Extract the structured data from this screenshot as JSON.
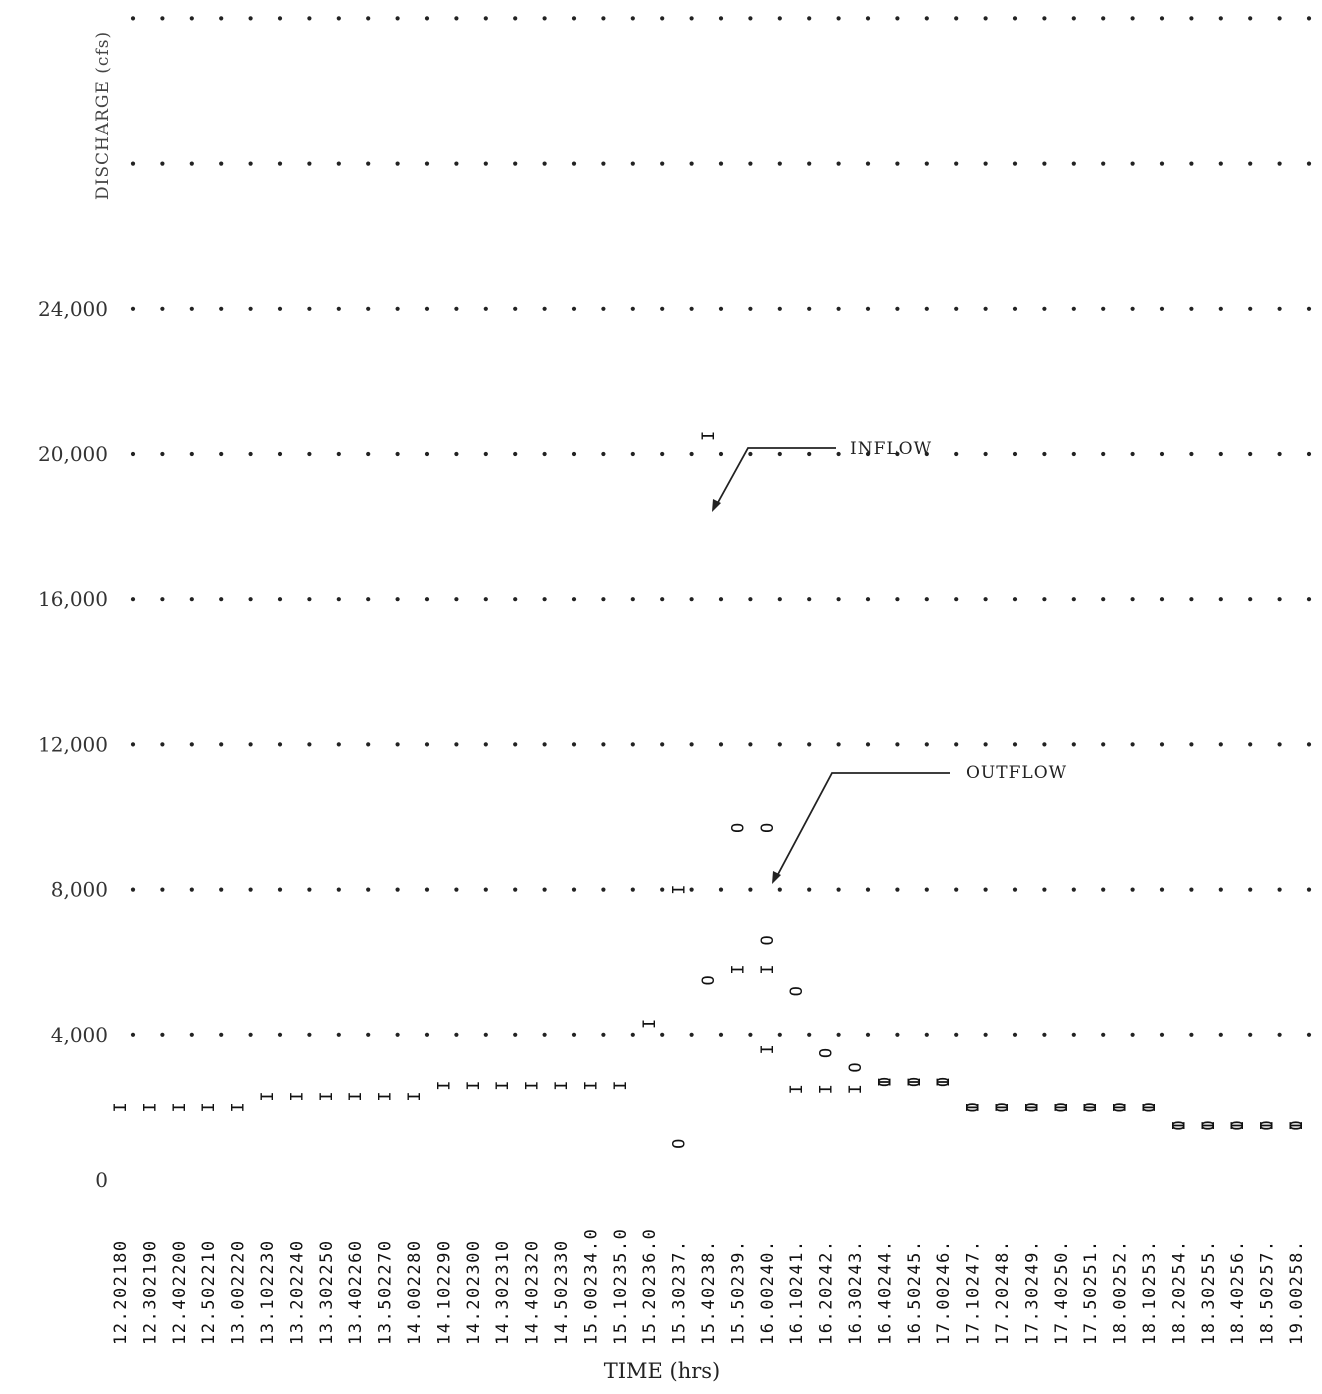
{
  "chart_data": {
    "type": "scatter",
    "ylabel": "DISCHARGE (cfs)",
    "xlabel": "TIME (hrs)",
    "ylim": [
      0,
      32000
    ],
    "yticks": [
      0,
      4000,
      8000,
      12000,
      16000,
      20000,
      24000
    ],
    "ytick_labels": [
      "0",
      "4,000",
      "8,000",
      "12,000",
      "16,000",
      "20,000",
      "24,000"
    ],
    "grid": "dotted rows",
    "x_labels": [
      "12.202180",
      "12.302190",
      "12.402200",
      "12.502210",
      "13.002220",
      "13.102230",
      "13.202240",
      "13.302250",
      "13.402260",
      "13.502270",
      "14.002280",
      "14.102290",
      "14.202300",
      "14.302310",
      "14.402320",
      "14.502330",
      "15.00234.0",
      "15.10235.0",
      "15.20236.0",
      "15.30237.",
      "15.40238.",
      "15.50239.",
      "16.00240.",
      "16.10241.",
      "16.20242.",
      "16.30243.",
      "16.40244.",
      "16.50245.",
      "17.00246.",
      "17.10247.",
      "17.20248.",
      "17.30249.",
      "17.40250.",
      "17.50251.",
      "18.00252.",
      "18.10253.",
      "18.20254.",
      "18.30255.",
      "18.40256.",
      "18.50257.",
      "19.00258."
    ],
    "series": [
      {
        "name": "INFLOW",
        "marker": "I",
        "values": [
          2000,
          2000,
          2000,
          2000,
          2000,
          2300,
          2300,
          2300,
          2300,
          2300,
          2300,
          2600,
          2600,
          2600,
          2600,
          2600,
          2600,
          2600,
          4300,
          8000,
          20500,
          5800,
          3600,
          2500,
          2500,
          2500,
          2700,
          2700,
          2700,
          2000,
          2000,
          2000,
          2000,
          2000,
          2000,
          2000,
          1500,
          1500,
          1500,
          1500,
          1500
        ]
      },
      {
        "name": "OUTFLOW",
        "marker": "O",
        "values": [
          null,
          null,
          null,
          null,
          null,
          null,
          null,
          null,
          null,
          null,
          null,
          null,
          null,
          null,
          null,
          null,
          null,
          null,
          null,
          1000,
          5500,
          9700,
          9700,
          5200,
          3500,
          3100,
          2700,
          2700,
          2700,
          2000,
          2000,
          2000,
          2000,
          2000,
          2000,
          2000,
          1500,
          1500,
          1500,
          1500,
          1500
        ]
      },
      {
        "name": "",
        "marker": "I",
        "values": [
          null,
          null,
          null,
          null,
          null,
          null,
          null,
          null,
          null,
          null,
          null,
          null,
          null,
          null,
          null,
          null,
          null,
          null,
          null,
          null,
          null,
          null,
          5800,
          null,
          null,
          null,
          null,
          null,
          null,
          null,
          null,
          null,
          null,
          null,
          null,
          null,
          null,
          null,
          null,
          null,
          null
        ]
      },
      {
        "name": "",
        "marker": "O",
        "values": [
          null,
          null,
          null,
          null,
          null,
          null,
          null,
          null,
          null,
          null,
          null,
          null,
          null,
          null,
          null,
          null,
          null,
          null,
          null,
          null,
          null,
          null,
          6600,
          null,
          null,
          null,
          null,
          null,
          null,
          null,
          null,
          null,
          null,
          null,
          null,
          null,
          null,
          null,
          null,
          null,
          null
        ]
      }
    ],
    "annotations": [
      {
        "text": "INFLOW",
        "points_to": {
          "x_index": 20,
          "y": 20500
        }
      },
      {
        "text": "OUTFLOW",
        "points_to": {
          "x_index": 22,
          "y": 9700
        }
      }
    ]
  }
}
